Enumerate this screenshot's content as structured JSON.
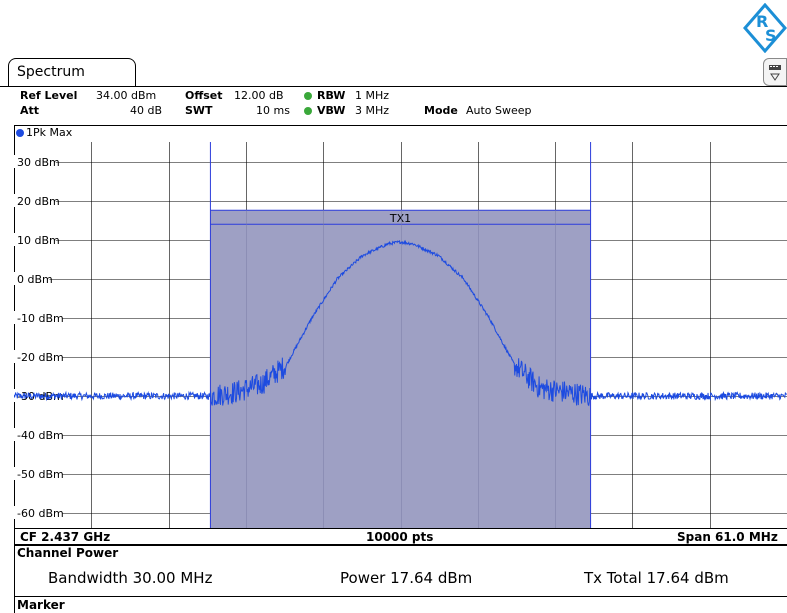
{
  "tab": {
    "title": "Spectrum"
  },
  "settings": {
    "ref_level_label": "Ref Level",
    "ref_level_value": "34.00 dBm",
    "offset_label": "Offset",
    "offset_value": "12.00 dB",
    "rbw_label": "RBW",
    "rbw_value": "1 MHz",
    "att_label": "Att",
    "att_value": "40 dB",
    "swt_label": "SWT",
    "swt_value": "10 ms",
    "vbw_label": "VBW",
    "vbw_value": "3 MHz",
    "mode_label": "Mode",
    "mode_value": "Auto Sweep"
  },
  "trace": {
    "label": "1Pk Max",
    "color": "#1d4be0"
  },
  "chart_data": {
    "type": "line",
    "y_unit": "dBm",
    "ylim": [
      -70,
      34
    ],
    "y_ticks": [
      30,
      20,
      10,
      0,
      -10,
      -20,
      -30,
      -40,
      -50,
      -60
    ],
    "y_tick_labels": [
      "30 dBm",
      "20 dBm",
      "10 dBm",
      "0 dBm",
      "-10 dBm",
      "-20 dBm",
      "-30 dBm",
      "-40 dBm",
      "-50 dBm",
      "-60 dBm"
    ],
    "x_unit": "MHz",
    "center_frequency": "CF 2.437 GHz",
    "points": "10000 pts",
    "span": "Span 61.0 MHz",
    "xlim": [
      2406.5,
      2467.5
    ],
    "channel": {
      "label": "TX1",
      "start": 2422,
      "stop": 2452,
      "power_level": 17.64
    },
    "trace_shape": {
      "x": [
        2406.5,
        2422,
        2424,
        2426,
        2428,
        2430,
        2432,
        2434,
        2436,
        2437,
        2438,
        2440,
        2442,
        2444,
        2446,
        2448,
        2450,
        2452,
        2467.5
      ],
      "y": [
        -30,
        -30,
        -29,
        -27,
        -22,
        -10,
        0,
        6,
        9,
        9.5,
        9,
        6,
        0,
        -10,
        -22,
        -28,
        -29,
        -30,
        -30
      ]
    },
    "grid": true
  },
  "channel_power": {
    "title": "Channel Power",
    "bandwidth_label": "Bandwidth",
    "bandwidth_value": "30.00 MHz",
    "power_label": "Power",
    "power_value": "17.64 dBm",
    "tx_total_label": "Tx Total",
    "tx_total_value": "17.64 dBm"
  },
  "marker": {
    "title": "Marker"
  },
  "logo": {
    "text_r": "R",
    "text_s": "S",
    "color": "#1c8fd6"
  }
}
